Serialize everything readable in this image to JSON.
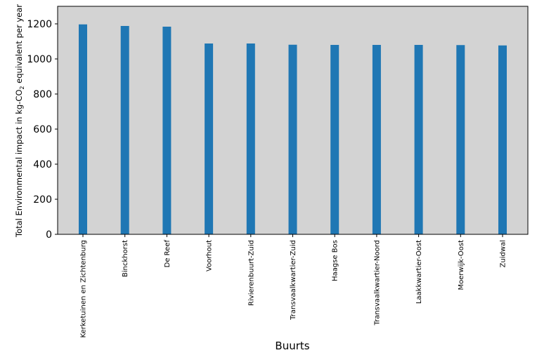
{
  "chart_data": {
    "type": "bar",
    "title": "",
    "xlabel": "Buurts",
    "ylabel": "Total Environmental impact in kg-CO",
    "ylabel_sub": "2",
    "ylabel_suffix": " equivalent per year",
    "categories": [
      "Kerketuinen en Zichtenburg",
      "Binckhorst",
      "De Reef",
      "Voorhout",
      "Rivierenbuurt-Zuid",
      "Transvaalkwartier-Zuid",
      "Haagse Bos",
      "Transvaalkwartier-Noord",
      "Laakkwartier-Oost",
      "Moerwijk-Oost",
      "Zuidwal"
    ],
    "values": [
      1197,
      1188,
      1184,
      1088,
      1088,
      1081,
      1080,
      1080,
      1080,
      1079,
      1077
    ],
    "ylim": [
      0,
      1300
    ],
    "yticks": [
      0,
      200,
      400,
      600,
      800,
      1000,
      1200
    ],
    "grid": false,
    "legend": "none",
    "colors": {
      "bar": "#1f77b4",
      "plot_background": "#d3d3d3",
      "axis": "#000000"
    }
  }
}
